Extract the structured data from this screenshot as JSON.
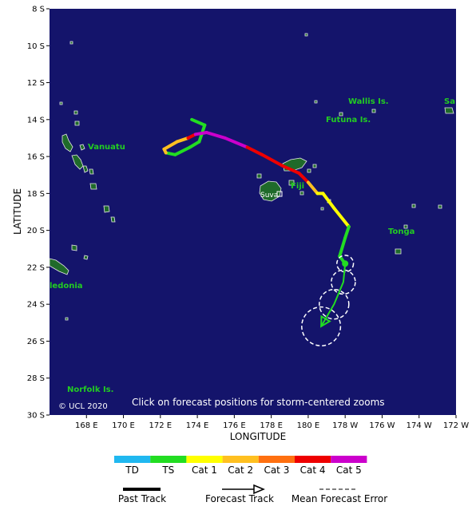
{
  "map": {
    "axis_x_title": "LONGITUDE",
    "axis_y_title": "LATITUDE",
    "lat_labels": [
      "8 S",
      "10 S",
      "12 S",
      "14 S",
      "16 S",
      "18 S",
      "20 S",
      "22 S",
      "24 S",
      "26 S",
      "28 S",
      "30 S"
    ],
    "lon_labels": [
      "168 E",
      "170 E",
      "172 E",
      "174 E",
      "176 E",
      "178 E",
      "180 E",
      "178 W",
      "176 W",
      "174 W",
      "172 W"
    ],
    "note": "Click on forecast positions for storm-centered zooms",
    "copyright": "© UCL 2020",
    "places": {
      "wallis": "Wallis Is.",
      "futuna": "Futuna Is.",
      "samoa": "Sa",
      "vanuatu": "Vanuatu",
      "fiji": "Fiji",
      "suva": "Suva",
      "tonga": "Tonga",
      "caledonia": "ledonia",
      "norfolk": "Norfolk Is."
    },
    "colors": {
      "ocean": "#14146b",
      "land": "#1f6a2a",
      "TD": "#20b8f0",
      "TS": "#22dd22",
      "Cat 1": "#ffff00",
      "Cat 2": "#ffc020",
      "Cat 3": "#ff7010",
      "Cat 4": "#ee0000",
      "Cat 5": "#cc00cc"
    },
    "past_track": [
      {
        "lon": 173.7,
        "lat": -14.0,
        "cat": "TS"
      },
      {
        "lon": 174.4,
        "lat": -14.3,
        "cat": "TS"
      },
      {
        "lon": 174.1,
        "lat": -15.2,
        "cat": "TS"
      },
      {
        "lon": 173.6,
        "lat": -15.5,
        "cat": "TS"
      },
      {
        "lon": 172.8,
        "lat": -15.9,
        "cat": "TS"
      },
      {
        "lon": 172.3,
        "lat": -15.8,
        "cat": "TS"
      },
      {
        "lon": 172.2,
        "lat": -15.6,
        "cat": "Cat 2"
      },
      {
        "lon": 172.9,
        "lat": -15.2,
        "cat": "Cat 2"
      },
      {
        "lon": 173.5,
        "lat": -15.0,
        "cat": "Cat 2"
      },
      {
        "lon": 173.9,
        "lat": -14.8,
        "cat": "Cat 4"
      },
      {
        "lon": 174.5,
        "lat": -14.7,
        "cat": "Cat 5"
      },
      {
        "lon": 175.5,
        "lat": -15.0,
        "cat": "Cat 5"
      },
      {
        "lon": 176.7,
        "lat": -15.5,
        "cat": "Cat 5"
      },
      {
        "lon": 177.5,
        "lat": -15.9,
        "cat": "Cat 4"
      },
      {
        "lon": 178.6,
        "lat": -16.5,
        "cat": "Cat 4"
      },
      {
        "lon": 179.5,
        "lat": -16.9,
        "cat": "Cat 4"
      },
      {
        "lon": 180.0,
        "lat": -17.4,
        "cat": "Cat 4"
      },
      {
        "lon": 180.5,
        "lat": -18.0,
        "cat": "Cat 2"
      },
      {
        "lon": 180.8,
        "lat": -18.0,
        "cat": "Cat 1"
      },
      {
        "lon": 181.4,
        "lat": -18.8,
        "cat": "Cat 1"
      },
      {
        "lon": 182.2,
        "lat": -19.8,
        "cat": "Cat 1"
      },
      {
        "lon": 182.0,
        "lat": -20.4,
        "cat": "TS"
      },
      {
        "lon": 181.7,
        "lat": -21.4,
        "cat": "TS"
      },
      {
        "lon": 182.0,
        "lat": -21.8,
        "cat": "TS"
      }
    ],
    "forecast_track": [
      {
        "lon": 182.0,
        "lat": -21.8
      },
      {
        "lon": 181.9,
        "lat": -22.8
      },
      {
        "lon": 181.4,
        "lat": -24.0
      },
      {
        "lon": 180.7,
        "lat": -25.2
      }
    ],
    "forecast_error_circles": [
      {
        "lon": 182.0,
        "lat": -21.8,
        "radius_deg": 0.45
      },
      {
        "lon": 181.9,
        "lat": -22.8,
        "radius_deg": 0.65
      },
      {
        "lon": 181.4,
        "lat": -24.0,
        "radius_deg": 0.8
      },
      {
        "lon": 180.7,
        "lat": -25.2,
        "radius_deg": 1.05
      }
    ]
  },
  "legend": {
    "categories": [
      "TD",
      "TS",
      "Cat 1",
      "Cat 2",
      "Cat 3",
      "Cat 4",
      "Cat 5"
    ],
    "past_track_label": "Past Track",
    "forecast_track_label": "Forecast Track",
    "error_label": "Mean Forecast Error"
  }
}
